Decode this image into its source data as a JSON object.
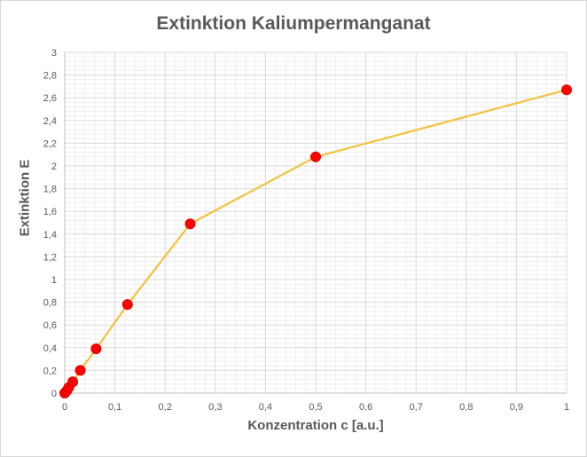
{
  "chart_data": {
    "type": "scatter",
    "title": "Extinktion Kaliumpermanganat",
    "xlabel": "Konzentration c [a.u.]",
    "ylabel": "Extinktion  E",
    "xlim": [
      0,
      1
    ],
    "ylim": [
      0,
      3
    ],
    "x_ticks": [
      "0",
      "0,1",
      "0,2",
      "0,3",
      "0,4",
      "0,5",
      "0,6",
      "0,7",
      "0,8",
      "0,9",
      "1"
    ],
    "y_ticks": [
      "0",
      "0,2",
      "0,4",
      "0,6",
      "0,8",
      "1",
      "1,2",
      "1,4",
      "1,6",
      "1,8",
      "2",
      "2,2",
      "2,4",
      "2,6",
      "2,8",
      "3"
    ],
    "grid": true,
    "minor_grid": true,
    "legend": "none",
    "series": [
      {
        "marker_color": "#ff0000",
        "line_color": "#f5c242",
        "x": [
          0,
          0.004,
          0.008,
          0.016,
          0.031,
          0.0625,
          0.125,
          0.25,
          0.5,
          1
        ],
        "y": [
          0,
          0.02,
          0.05,
          0.1,
          0.2,
          0.39,
          0.78,
          1.49,
          2.08,
          2.67
        ]
      }
    ]
  }
}
